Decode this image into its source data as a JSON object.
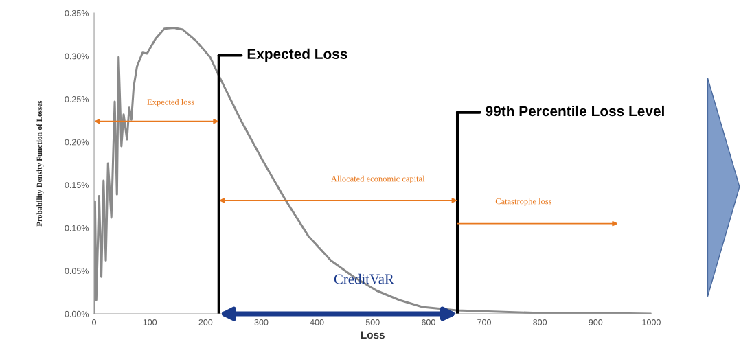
{
  "chart_data": {
    "type": "line",
    "xlabel": "Loss",
    "ylabel": "Probability Density Function of Losses",
    "x": [
      0,
      1.6,
      4,
      9,
      13,
      17,
      21,
      25,
      31,
      37,
      41,
      44,
      49,
      53,
      59,
      63,
      67,
      71,
      77,
      87,
      95,
      110,
      126,
      143,
      159,
      184,
      208,
      224,
      262,
      302,
      343,
      384,
      425,
      466,
      507,
      548,
      589,
      651,
      698,
      796,
      900,
      1000
    ],
    "series": [
      {
        "color": "#8a8a8a",
        "values": [
          0.0,
          0.131,
          0.016,
          0.137,
          0.043,
          0.155,
          0.062,
          0.175,
          0.112,
          0.247,
          0.139,
          0.299,
          0.195,
          0.232,
          0.203,
          0.24,
          0.226,
          0.264,
          0.288,
          0.304,
          0.303,
          0.32,
          0.332,
          0.333,
          0.331,
          0.317,
          0.299,
          0.277,
          0.227,
          0.179,
          0.133,
          0.091,
          0.062,
          0.043,
          0.027,
          0.016,
          0.008,
          0.004,
          0.003,
          0.001,
          0.001,
          0.0
        ]
      }
    ],
    "xlim": [
      0,
      1000
    ],
    "xticks": [
      0,
      100,
      200,
      300,
      400,
      500,
      600,
      700,
      800,
      900,
      1000
    ],
    "ylim": [
      0,
      0.35
    ],
    "yticks": [
      {
        "value": 0,
        "label": "0.00%"
      },
      {
        "value": 0.05,
        "label": "0.05%"
      },
      {
        "value": 0.1,
        "label": "0.10%"
      },
      {
        "value": 0.15,
        "label": "0.15%"
      },
      {
        "value": 0.2,
        "label": "0.20%"
      },
      {
        "value": 0.25,
        "label": "0.25%"
      },
      {
        "value": 0.3,
        "label": "0.30%"
      },
      {
        "value": 0.35,
        "label": "0.35%"
      }
    ],
    "ref_lines": [
      {
        "axis": "x",
        "value": 224,
        "label": "Expected Loss",
        "color": "#000000"
      },
      {
        "axis": "x",
        "value": 652,
        "label": "99th Percentile Loss Level",
        "color": "#000000"
      }
    ],
    "annotations": [
      "Expected loss",
      "Allocated economic capital",
      "Catastrophe loss",
      "CreditVaR"
    ],
    "grid": false,
    "marker": "none",
    "line_style": "solid"
  }
}
